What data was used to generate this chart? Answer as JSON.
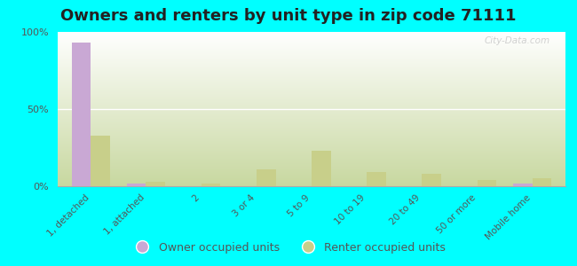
{
  "title": "Owners and renters by unit type in zip code 71111",
  "categories": [
    "1, detached",
    "1, attached",
    "2",
    "3 or 4",
    "5 to 9",
    "10 to 19",
    "20 to 49",
    "50 or more",
    "Mobile home"
  ],
  "owner_values": [
    93,
    2,
    0,
    0,
    0,
    0,
    0,
    0,
    2
  ],
  "renter_values": [
    33,
    3,
    2,
    11,
    23,
    9,
    8,
    4,
    5
  ],
  "owner_color": "#c9a8d4",
  "renter_color": "#c8cf8a",
  "background_color": "#00ffff",
  "grad_top": "#f5fdf0",
  "grad_mid": "#e8f5d8",
  "grad_bot": "#d0e8b0",
  "title_fontsize": 13,
  "legend_fontsize": 9,
  "bar_width": 0.35,
  "ylim": [
    0,
    100
  ],
  "yticks": [
    0,
    50,
    100
  ],
  "ytick_labels": [
    "0%",
    "50%",
    "100%"
  ],
  "watermark": "City-Data.com"
}
